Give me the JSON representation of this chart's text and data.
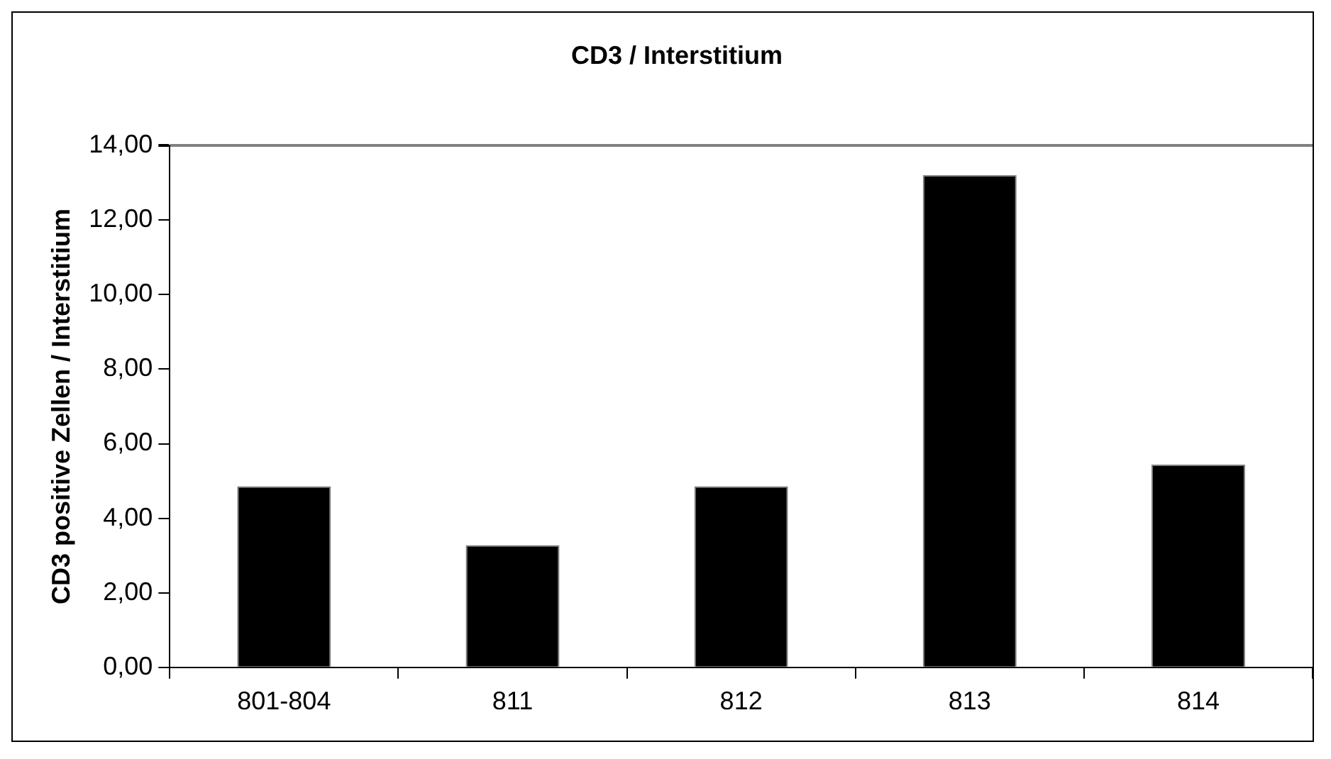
{
  "chart_data": {
    "type": "bar",
    "title": "CD3 / Interstitium",
    "ylabel": "CD3 positive Zellen / Interstitium",
    "categories": [
      "801-804",
      "811",
      "812",
      "813",
      "814"
    ],
    "values": [
      4.86,
      3.28,
      4.86,
      13.21,
      5.44
    ],
    "color": "#000000",
    "ylim": [
      0,
      14
    ],
    "yticks": [
      {
        "value": 0,
        "label": "0,00"
      },
      {
        "value": 2,
        "label": "2,00"
      },
      {
        "value": 4,
        "label": "4,00"
      },
      {
        "value": 6,
        "label": "6,00"
      },
      {
        "value": 8,
        "label": "8,00"
      },
      {
        "value": 10,
        "label": "10,00"
      },
      {
        "value": 12,
        "label": "12,00"
      },
      {
        "value": 14,
        "label": "14,00"
      }
    ],
    "legend": false
  }
}
